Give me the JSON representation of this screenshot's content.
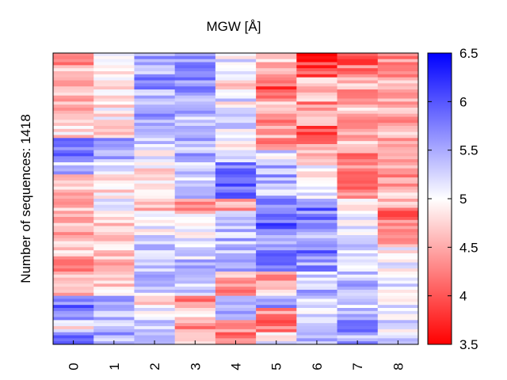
{
  "chart_data": {
    "type": "heatmap",
    "title": "MGW [Å]",
    "ylabel": "Number of sequences: 1418",
    "xlabel": "",
    "categories": [
      "0",
      "1",
      "2",
      "3",
      "4",
      "5",
      "6",
      "7",
      "8"
    ],
    "row_count": 1418,
    "colorbar": {
      "min": 3.5,
      "max": 6.5,
      "ticks": [
        "3.5",
        "4",
        "4.5",
        "5",
        "5.5",
        "6",
        "6.5"
      ],
      "colormap": [
        "#ff0000",
        "#ffffff",
        "#0000ff"
      ]
    },
    "bands": [
      {
        "rows": 4,
        "values": [
          4.3,
          5.1,
          5.6,
          5.7,
          5.1,
          4.6,
          3.8,
          3.8,
          4.3
        ]
      },
      {
        "rows": 4,
        "values": [
          4.6,
          5.0,
          5.5,
          5.7,
          5.1,
          4.5,
          3.9,
          4.2,
          4.4
        ]
      },
      {
        "rows": 4,
        "values": [
          4.7,
          4.9,
          5.7,
          5.6,
          4.8,
          4.0,
          4.7,
          4.6,
          4.5
        ]
      },
      {
        "rows": 4,
        "values": [
          4.6,
          4.8,
          5.4,
          5.6,
          5.3,
          4.4,
          4.7,
          4.5,
          4.4
        ]
      },
      {
        "rows": 4,
        "values": [
          4.6,
          4.9,
          5.4,
          5.5,
          5.0,
          4.6,
          4.3,
          4.6,
          4.5
        ]
      },
      {
        "rows": 4,
        "values": [
          4.7,
          4.9,
          5.5,
          5.4,
          5.3,
          4.4,
          4.4,
          4.2,
          4.5
        ]
      },
      {
        "rows": 4,
        "values": [
          4.8,
          4.8,
          5.5,
          5.6,
          5.2,
          4.6,
          4.0,
          4.5,
          4.6
        ]
      },
      {
        "rows": 4,
        "values": [
          5.7,
          5.5,
          5.2,
          5.4,
          5.0,
          4.2,
          4.3,
          4.6,
          4.5
        ]
      },
      {
        "rows": 4,
        "values": [
          5.8,
          5.4,
          5.1,
          5.5,
          5.3,
          5.2,
          4.6,
          4.3,
          4.6
        ]
      },
      {
        "rows": 4,
        "values": [
          5.4,
          5.0,
          4.9,
          5.4,
          5.9,
          5.5,
          4.9,
          4.3,
          4.5
        ]
      },
      {
        "rows": 4,
        "values": [
          4.8,
          4.9,
          4.8,
          5.3,
          5.9,
          5.5,
          5.0,
          4.2,
          4.4
        ]
      },
      {
        "rows": 4,
        "values": [
          4.7,
          4.9,
          5.0,
          5.3,
          5.9,
          5.4,
          5.0,
          4.3,
          4.6
        ]
      },
      {
        "rows": 4,
        "values": [
          4.6,
          5.1,
          4.7,
          4.5,
          4.4,
          5.8,
          5.8,
          5.1,
          4.5
        ]
      },
      {
        "rows": 4,
        "values": [
          4.6,
          4.8,
          5.0,
          4.8,
          5.4,
          5.7,
          5.7,
          5.0,
          4.2
        ]
      },
      {
        "rows": 4,
        "values": [
          4.5,
          4.8,
          5.1,
          5.0,
          5.3,
          5.9,
          5.6,
          5.1,
          4.3
        ]
      },
      {
        "rows": 4,
        "values": [
          4.6,
          4.8,
          5.3,
          5.1,
          5.4,
          5.6,
          5.5,
          5.2,
          4.5
        ]
      },
      {
        "rows": 4,
        "values": [
          4.6,
          4.7,
          5.4,
          5.2,
          5.3,
          5.8,
          5.8,
          5.3,
          4.9
        ]
      },
      {
        "rows": 4,
        "values": [
          4.4,
          4.6,
          5.4,
          5.4,
          5.6,
          5.9,
          5.6,
          5.3,
          5.0
        ]
      },
      {
        "rows": 4,
        "values": [
          4.5,
          4.7,
          5.3,
          5.3,
          4.5,
          4.4,
          5.3,
          5.4,
          5.1
        ]
      },
      {
        "rows": 4,
        "values": [
          4.7,
          4.7,
          5.3,
          5.2,
          4.4,
          4.6,
          5.4,
          5.5,
          5.1
        ]
      },
      {
        "rows": 4,
        "values": [
          5.8,
          5.6,
          4.7,
          4.2,
          5.6,
          5.7,
          5.2,
          5.3,
          5.1
        ]
      },
      {
        "rows": 4,
        "values": [
          5.7,
          5.4,
          5.0,
          4.9,
          5.4,
          4.3,
          5.3,
          5.3,
          5.2
        ]
      },
      {
        "rows": 4,
        "values": [
          4.9,
          5.2,
          5.2,
          4.4,
          4.4,
          4.2,
          5.4,
          5.6,
          5.2
        ]
      },
      {
        "rows": 4,
        "values": [
          5.7,
          5.5,
          5.2,
          5.0,
          4.3,
          5.0,
          5.3,
          5.5,
          5.3
        ]
      }
    ]
  }
}
